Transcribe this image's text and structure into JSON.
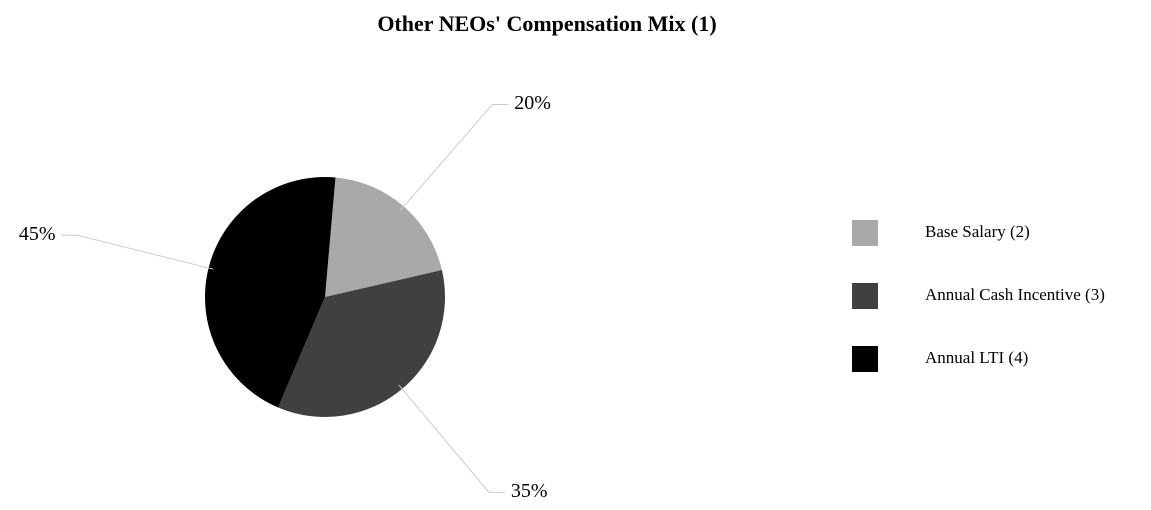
{
  "chart_data": {
    "type": "pie",
    "title": "Other NEOs' Compensation Mix (1)",
    "categories": [
      "Base Salary (2)",
      "Annual Cash Incentive (3)",
      "Annual LTI (4)"
    ],
    "values": [
      20,
      35,
      45
    ],
    "value_labels": [
      "20%",
      "35%",
      "45%"
    ],
    "colors": [
      "#a9a9a9",
      "#404040",
      "#000000"
    ],
    "legend": "right"
  }
}
